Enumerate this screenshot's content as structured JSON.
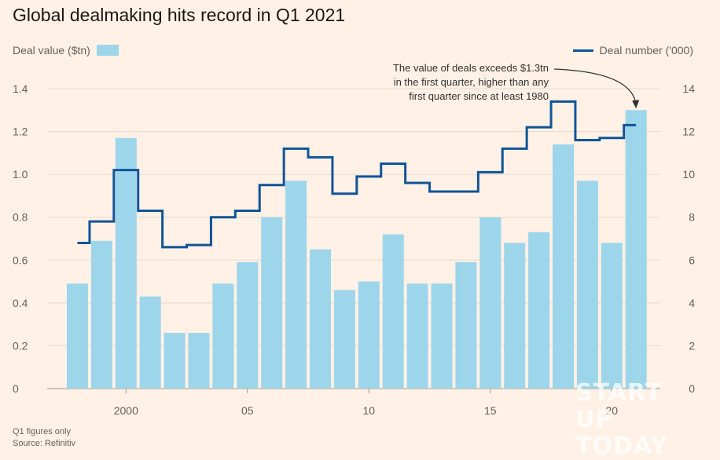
{
  "chart_data": {
    "type": "bar+step-line",
    "title": "Global dealmaking hits record in Q1 2021",
    "years": [
      1998,
      1999,
      2000,
      2001,
      2002,
      2003,
      2004,
      2005,
      2006,
      2007,
      2008,
      2009,
      2010,
      2011,
      2012,
      2013,
      2014,
      2015,
      2016,
      2017,
      2018,
      2019,
      2020,
      2021
    ],
    "series": [
      {
        "name": "Deal value ($tn)",
        "axis": "left",
        "type": "bar",
        "values": [
          0.49,
          0.69,
          1.17,
          0.43,
          0.26,
          0.26,
          0.49,
          0.59,
          0.8,
          0.97,
          0.65,
          0.46,
          0.5,
          0.72,
          0.49,
          0.49,
          0.59,
          0.8,
          0.68,
          0.73,
          1.14,
          0.97,
          0.68,
          1.3
        ]
      },
      {
        "name": "Deal number ('000)",
        "axis": "right",
        "type": "step-line",
        "values": [
          6.8,
          7.8,
          10.2,
          8.3,
          6.6,
          6.7,
          8.0,
          8.3,
          9.5,
          11.2,
          10.8,
          9.1,
          9.9,
          10.5,
          9.6,
          9.2,
          9.2,
          10.1,
          11.2,
          12.2,
          13.4,
          11.6,
          11.7,
          12.3
        ]
      }
    ],
    "y_left": {
      "min": 0,
      "max": 1.4,
      "ticks": [
        0,
        0.2,
        0.4,
        0.6,
        0.8,
        1.0,
        1.2,
        1.4
      ],
      "tick_labels": [
        "0",
        "0.2",
        "0.4",
        "0.6",
        "0.8",
        "1.0",
        "1.2",
        "1.4"
      ]
    },
    "y_right": {
      "min": 0,
      "max": 14,
      "ticks": [
        0,
        2,
        4,
        6,
        8,
        10,
        12,
        14
      ],
      "tick_labels": [
        "0",
        "2",
        "4",
        "6",
        "8",
        "10",
        "12",
        "14"
      ]
    },
    "x_ticks": [
      {
        "year": 2000,
        "label": "2000"
      },
      {
        "year": 2005,
        "label": "05"
      },
      {
        "year": 2010,
        "label": "10"
      },
      {
        "year": 2015,
        "label": "15"
      },
      {
        "year": 2020,
        "label": "20"
      }
    ],
    "legend": {
      "left_label": "Deal value ($tn)",
      "right_label": "Deal number ('000)"
    },
    "annotation": {
      "line1": "The value of deals exceeds $1.3tn",
      "line2": "in the first quarter, higher than any",
      "line3": "first quarter since at least 1980",
      "points_to_year": 2021
    },
    "note": "Q1 figures only",
    "source": "Source: Refinitiv"
  },
  "watermark": {
    "line1": "START UP",
    "line2": "TODAY"
  },
  "colors": {
    "bar": "#9dd5eb",
    "line": "#0f5499",
    "grid": "#e6d9ce",
    "bg": "#fff1e5",
    "arrow": "#33302e"
  }
}
